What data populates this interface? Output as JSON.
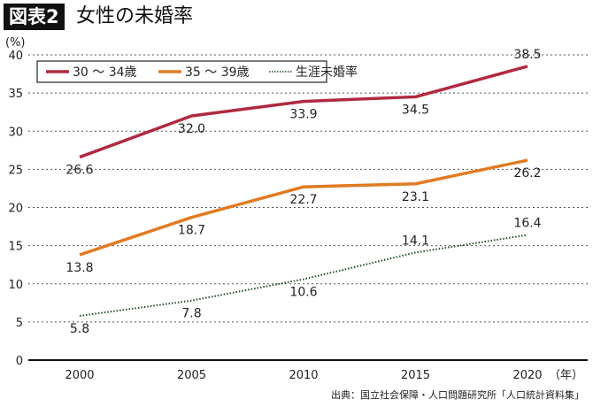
{
  "title_badge": "図表2",
  "title": "女性の未婚率",
  "source": "出典：国立社会保障・人口問題研究所「人口統計資料集」",
  "chart_data": {
    "type": "line",
    "x": [
      2000,
      2005,
      2010,
      2015,
      2020
    ],
    "xlabel": "（年）",
    "ylabel": "(%)",
    "ylim": [
      0,
      40
    ],
    "yticks": [
      0,
      5,
      10,
      15,
      20,
      25,
      30,
      35,
      40
    ],
    "grid": true,
    "legend_position": "top-left",
    "series": [
      {
        "name": "30 ～ 34歳",
        "values": [
          26.6,
          32.0,
          33.9,
          34.5,
          38.5
        ],
        "labels": [
          "26.6",
          "32.0",
          "33.9",
          "34.5",
          "38.5"
        ],
        "color": "#b02a40",
        "style": "solid"
      },
      {
        "name": "35 ～ 39歳",
        "values": [
          13.8,
          18.7,
          22.7,
          23.1,
          26.2
        ],
        "labels": [
          "13.8",
          "18.7",
          "22.7",
          "23.1",
          "26.2"
        ],
        "color": "#e07b22",
        "style": "solid"
      },
      {
        "name": "生涯未婚率",
        "values": [
          5.8,
          7.8,
          10.6,
          14.1,
          16.4
        ],
        "labels": [
          "5.8",
          "7.8",
          "10.6",
          "14.1",
          "16.4"
        ],
        "color": "#1e4d22",
        "style": "dotted"
      }
    ]
  }
}
